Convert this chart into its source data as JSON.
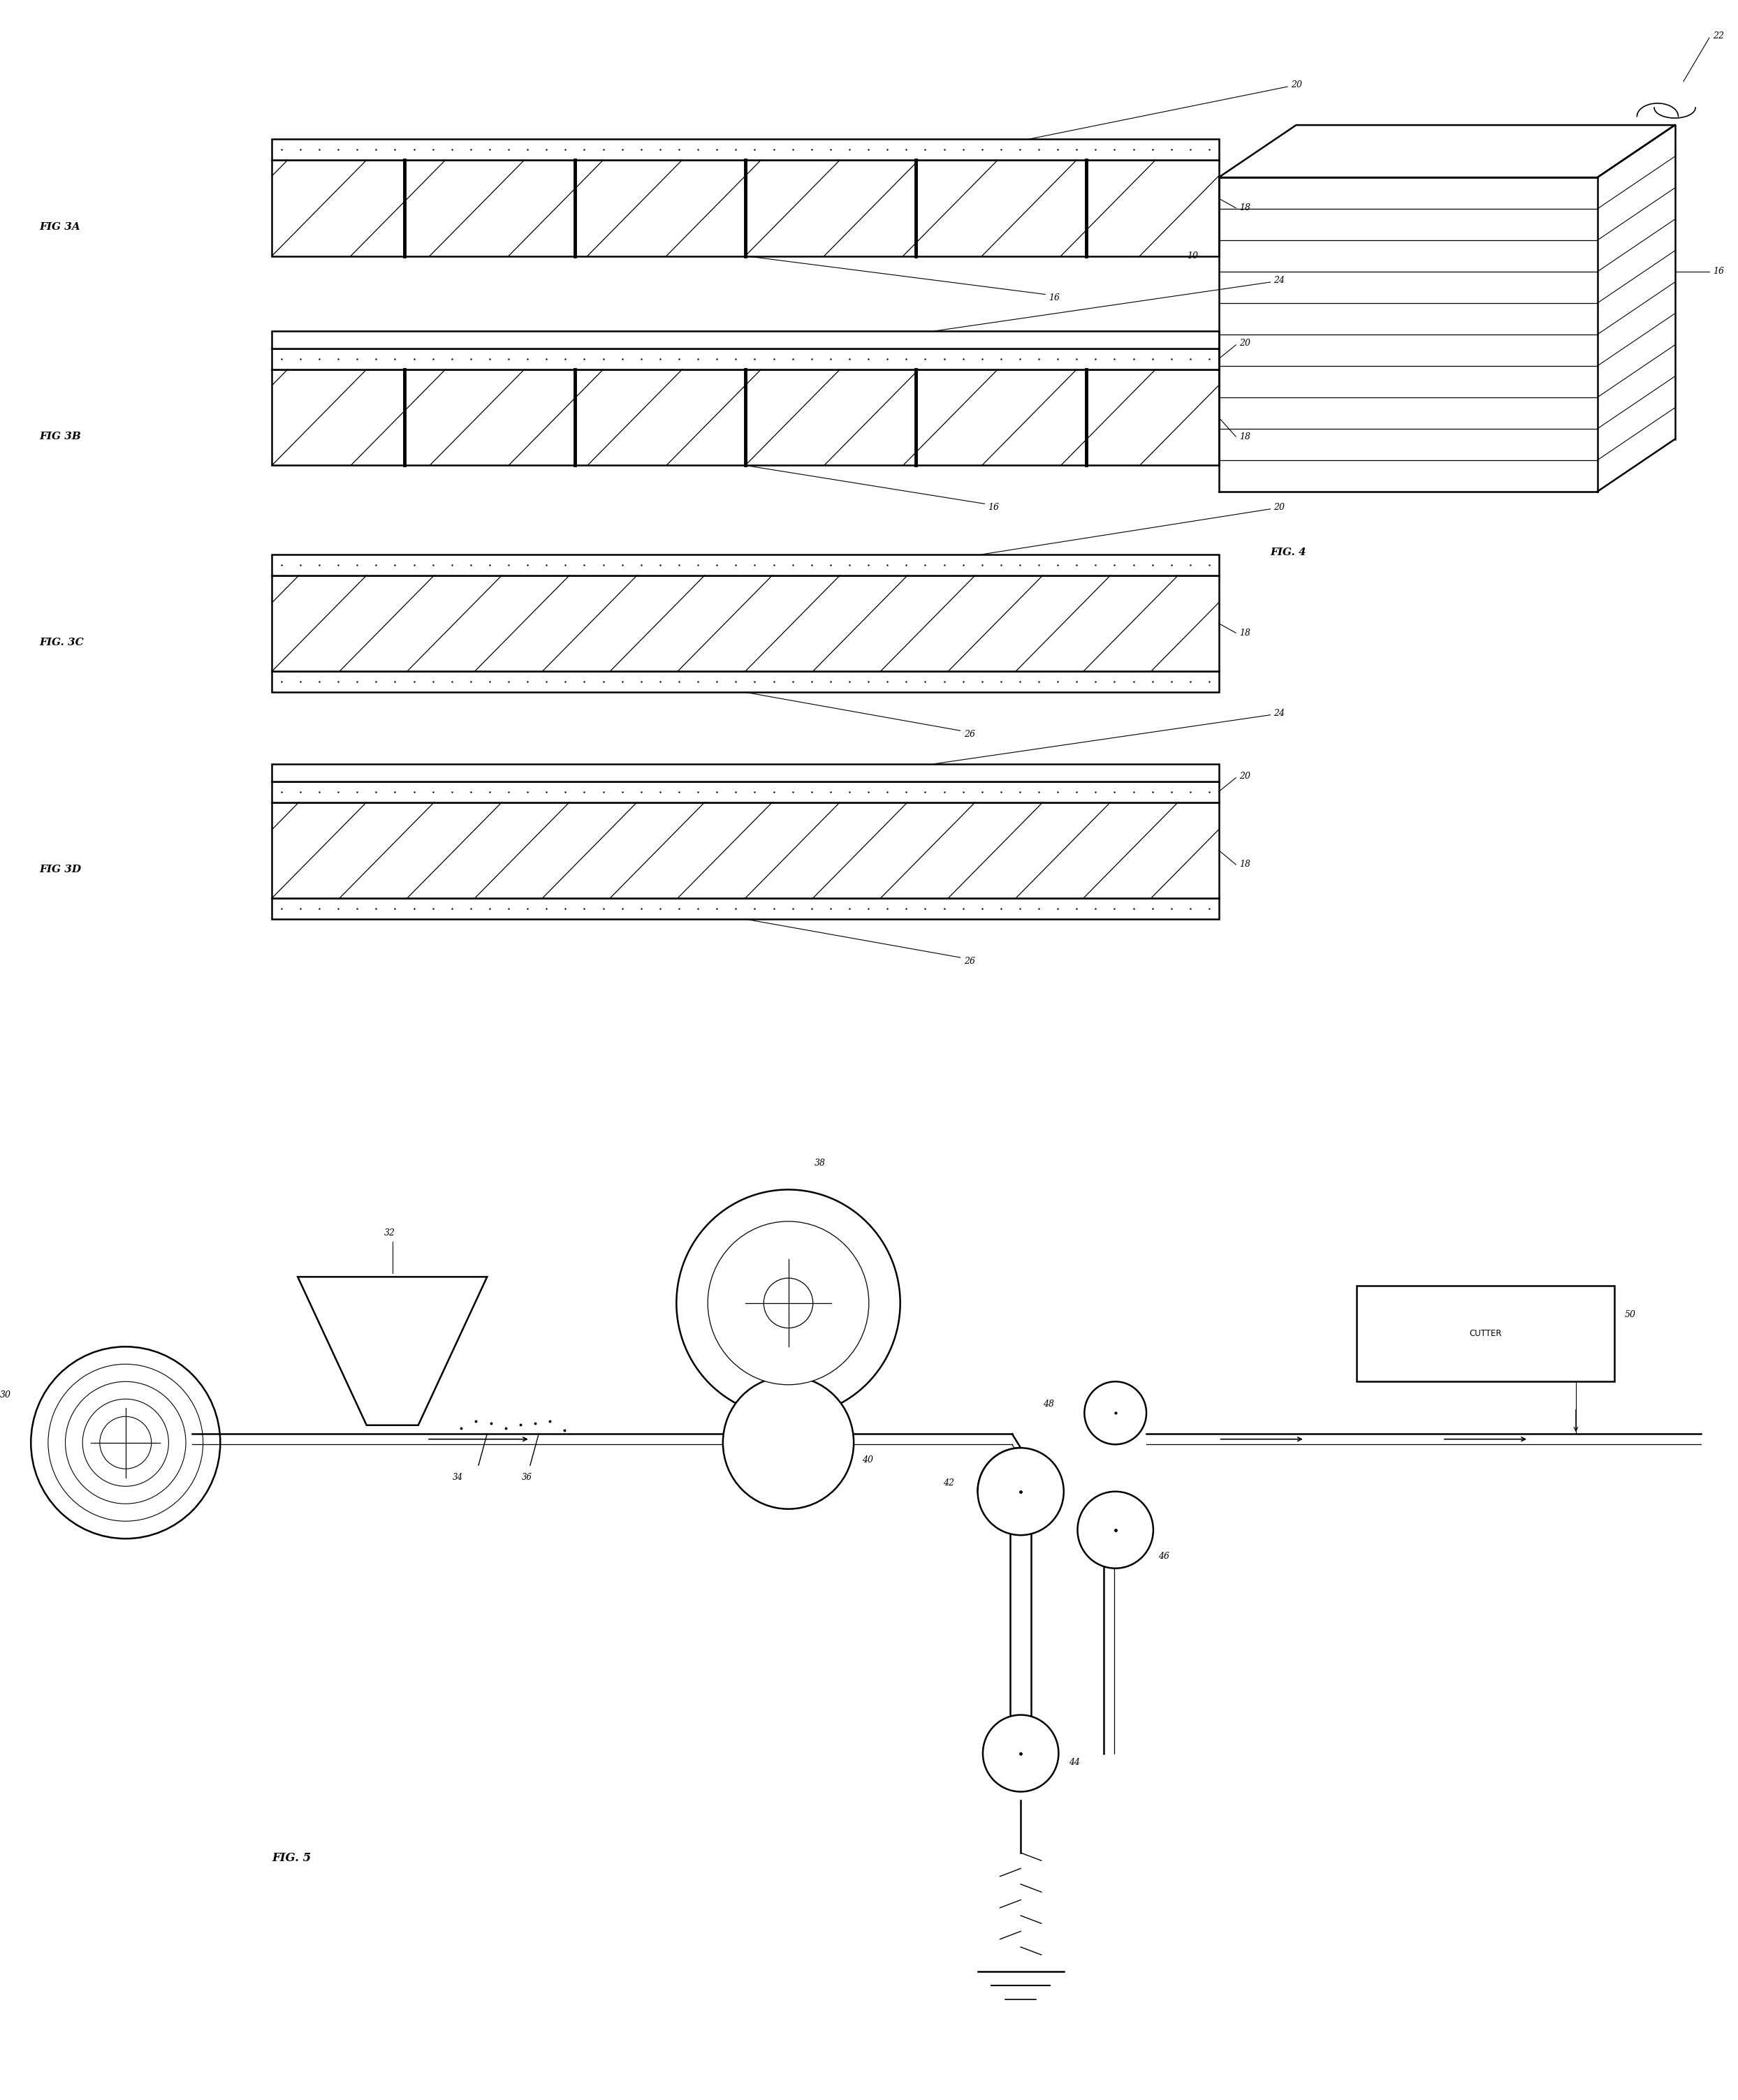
{
  "bg_color": "#ffffff",
  "line_color": "#000000",
  "fig_width": 24.88,
  "fig_height": 30.07,
  "labels": {
    "fig3a": "FIG 3A",
    "fig3b": "FIG 3B",
    "fig3c": "FIG. 3C",
    "fig3d": "FIG 3D",
    "fig4": "FIG. 4",
    "fig5": "FIG. 5"
  }
}
